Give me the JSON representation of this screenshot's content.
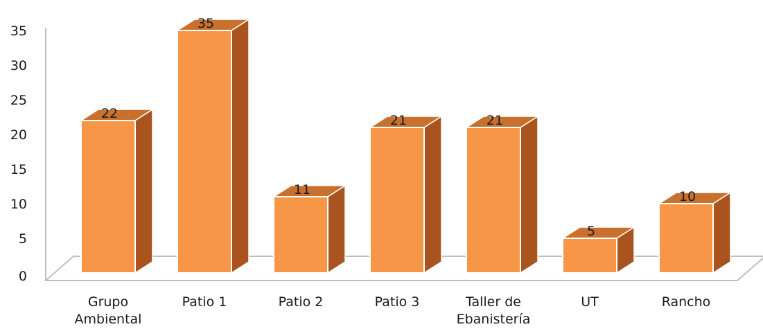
{
  "chart_data": {
    "type": "bar",
    "three_d": true,
    "categories": [
      [
        "Grupo",
        "Ambiental"
      ],
      [
        "Patio 1"
      ],
      [
        "Patio 2"
      ],
      [
        "Patio 3"
      ],
      [
        "Taller de",
        "Ebanistería"
      ],
      [
        "UT"
      ],
      [
        "Rancho"
      ]
    ],
    "values": [
      22,
      35,
      11,
      21,
      21,
      5,
      10
    ],
    "data_labels": [
      "22",
      "35",
      "11",
      "21",
      "21",
      "5",
      "10"
    ],
    "y_ticks": [
      "0",
      "5",
      "10",
      "15",
      "20",
      "25",
      "30",
      "35"
    ],
    "ylim": [
      0,
      35
    ],
    "grid": false,
    "legend": "none",
    "colors": {
      "front": "#F79646",
      "side": "#A9541E",
      "top": "#C8702E",
      "floor": "#ffffff",
      "axis": "#bfbfbf"
    }
  }
}
